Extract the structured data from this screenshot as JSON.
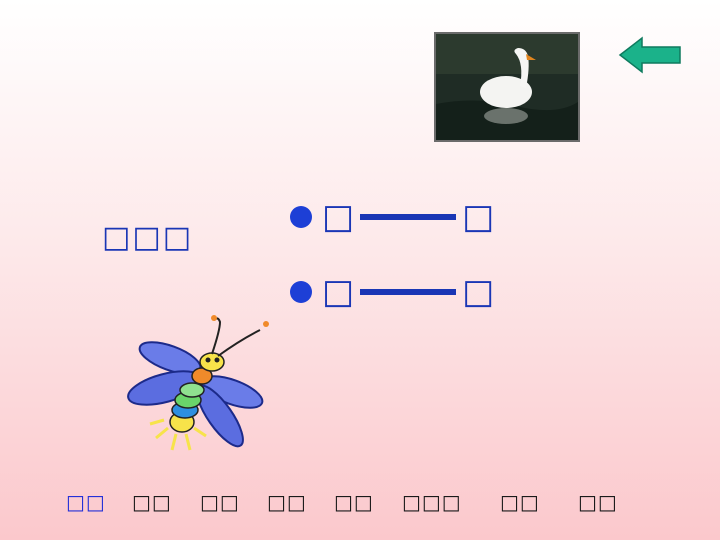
{
  "photo": {
    "caption": "white goose on water"
  },
  "back_button": {
    "icon": "arrow-left-icon",
    "color": "#1bb28a"
  },
  "heading": {
    "text": "□□□"
  },
  "pairs": [
    {
      "left": "□",
      "right": "□"
    },
    {
      "left": "□",
      "right": "□"
    }
  ],
  "nav": {
    "items": [
      "□□",
      "□□",
      "□□",
      "□□",
      "□□",
      "□□□",
      "□□",
      "□□"
    ],
    "active_index": 0
  },
  "colors": {
    "accent": "#1a36b5",
    "bullet": "#1d3fd6",
    "nav_active": "#2431d8"
  }
}
